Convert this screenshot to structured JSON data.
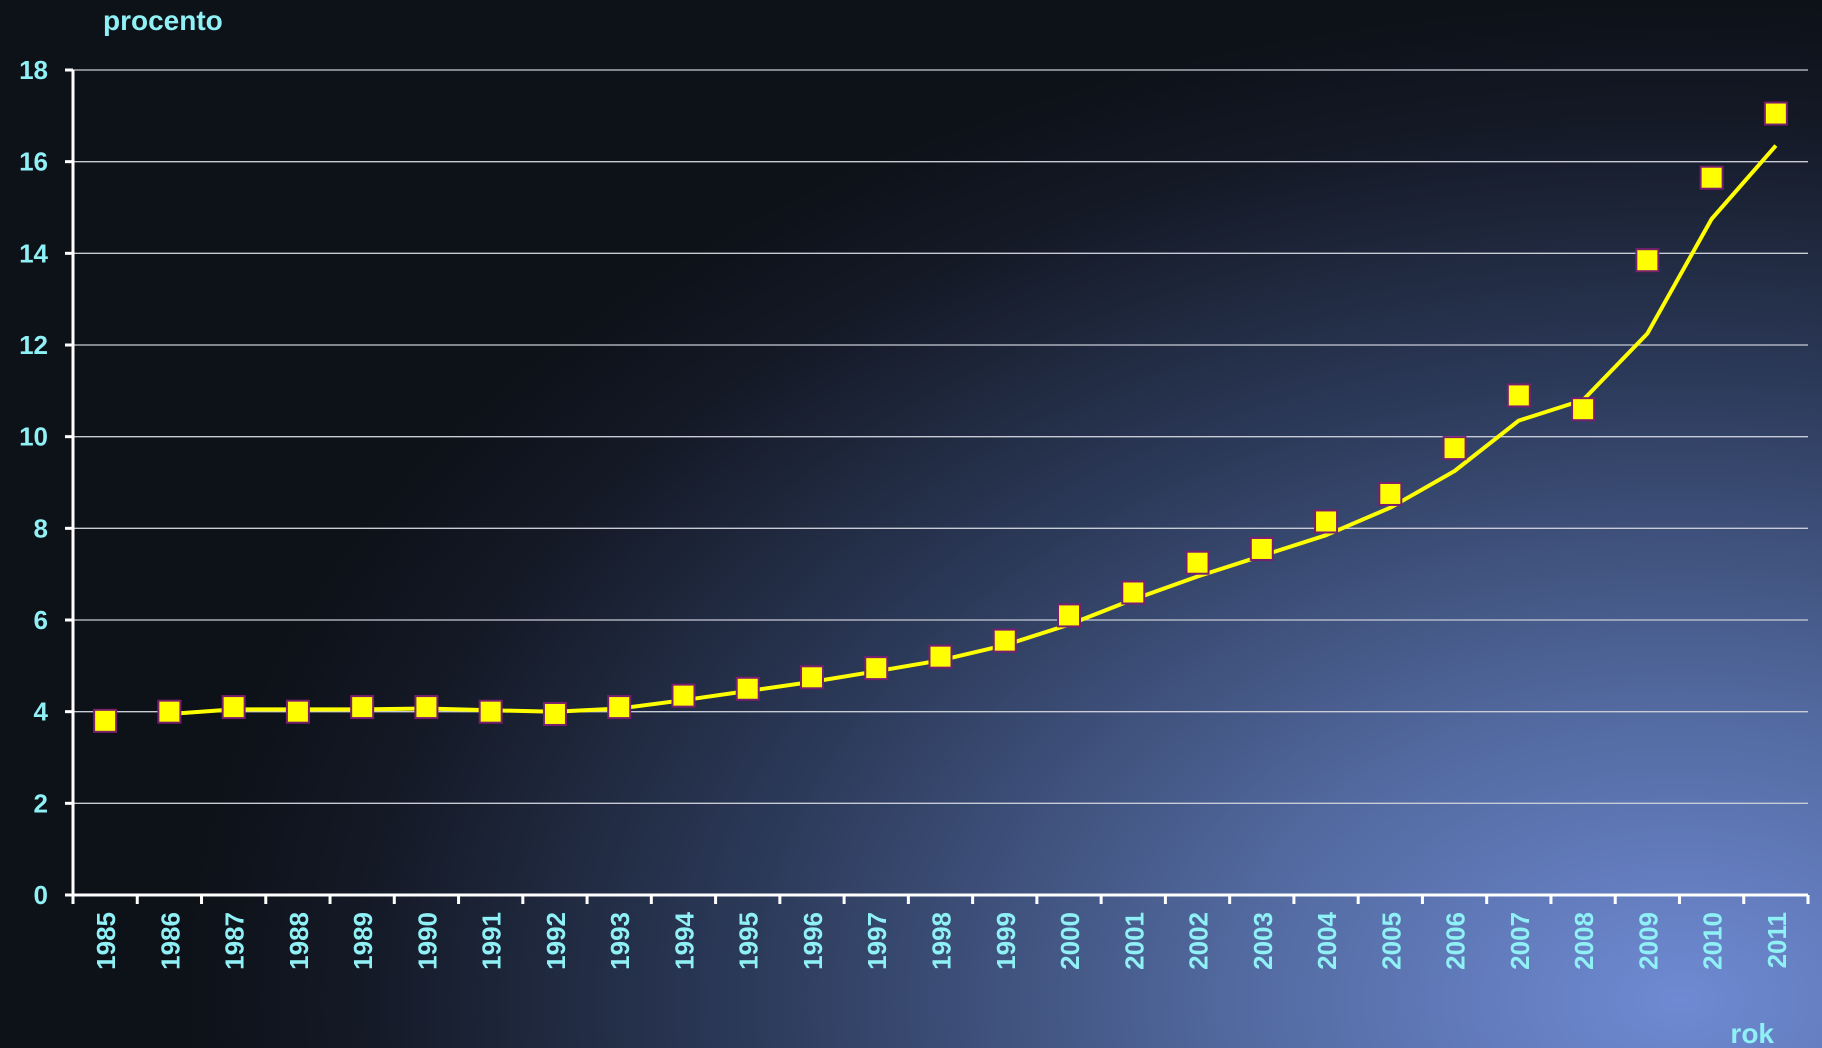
{
  "chart_data": {
    "type": "line",
    "title": "",
    "ylabel": "procento",
    "xlabel": "rok",
    "ylim": [
      0,
      18
    ],
    "yticks": [
      0,
      2,
      4,
      6,
      8,
      10,
      12,
      14,
      16,
      18
    ],
    "grid": true,
    "legend": "none",
    "categories": [
      "1985",
      "1986",
      "1987",
      "1988",
      "1989",
      "1990",
      "1991",
      "1992",
      "1993",
      "1994",
      "1995",
      "1996",
      "1997",
      "1998",
      "1999",
      "2000",
      "2001",
      "2002",
      "2003",
      "2004",
      "2005",
      "2006",
      "2007",
      "2008",
      "2009",
      "2010",
      "2011"
    ],
    "series": [
      {
        "kind": "markers",
        "marker": "square",
        "color": "#ffff00",
        "values": [
          3.8,
          4.0,
          4.1,
          4.0,
          4.1,
          4.1,
          4.0,
          3.95,
          4.1,
          4.35,
          4.5,
          4.75,
          4.95,
          5.2,
          5.55,
          6.1,
          6.6,
          7.25,
          7.55,
          8.15,
          8.75,
          9.75,
          10.9,
          10.6,
          13.85,
          15.65,
          17.05
        ]
      },
      {
        "kind": "line",
        "color": "#ffff00",
        "values": [
          null,
          3.95,
          4.05,
          4.05,
          4.05,
          4.07,
          4.03,
          4.0,
          4.07,
          4.25,
          4.45,
          4.65,
          4.88,
          5.12,
          5.45,
          5.9,
          6.45,
          6.95,
          7.4,
          7.85,
          8.45,
          9.25,
          10.35,
          10.8,
          12.25,
          14.75,
          16.35
        ]
      }
    ]
  }
}
